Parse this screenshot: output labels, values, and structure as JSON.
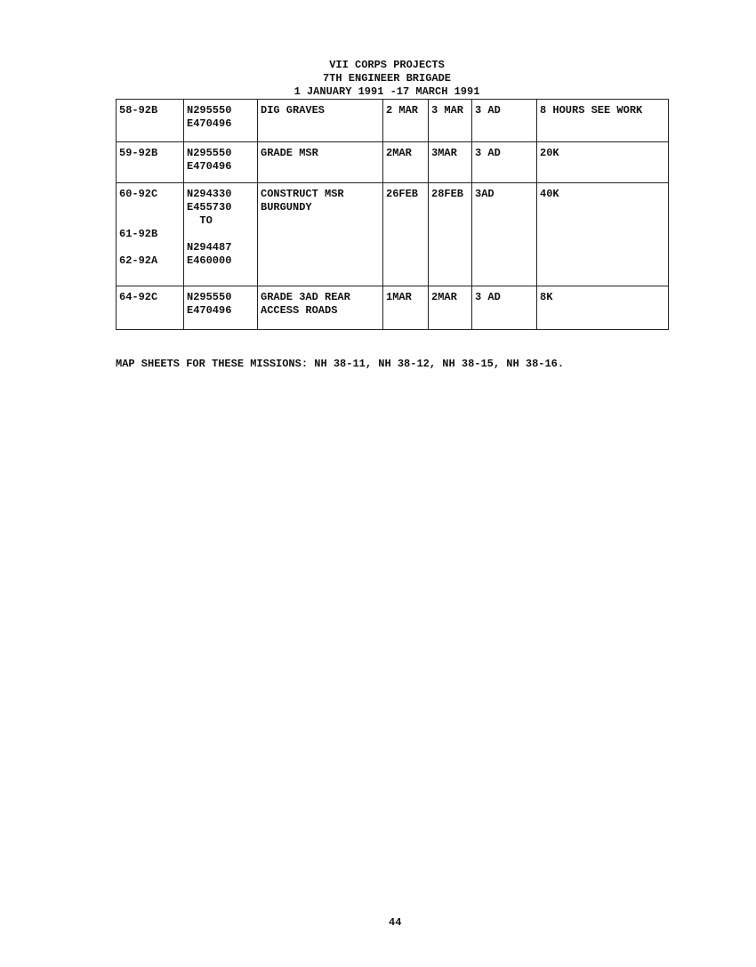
{
  "header": {
    "line1": "VII CORPS PROJECTS",
    "line2": "7TH ENGINEER BRIGADE",
    "line3": "1 JANUARY 1991 -17 MARCH 1991"
  },
  "rows": [
    {
      "project": "58-92B",
      "grid": "N295550\nE470496",
      "task": "DIG GRAVES",
      "start": "2 MAR",
      "end": "3 MAR",
      "unit": "3 AD",
      "notes": "8 HOURS SEE WORK"
    },
    {
      "project": "59-92B",
      "grid": "N295550\nE470496",
      "task": "GRADE MSR",
      "start": "2MAR",
      "end": "3MAR",
      "unit": "3 AD",
      "notes": "20K"
    },
    {
      "project": "60-92C\n\n\n61-92B\n\n62-92A",
      "grid": "N294330\nE455730\n  TO\n\nN294487\nE460000",
      "task": "CONSTRUCT MSR\nBURGUNDY",
      "start": "26FEB",
      "end": "28FEB",
      "unit": "3AD",
      "notes": "40K"
    },
    {
      "project": "64-92C",
      "grid": "N295550\nE470496",
      "task": "GRADE 3AD REAR\nACCESS ROADS",
      "start": "1MAR",
      "end": "2MAR",
      "unit": "3 AD",
      "notes": "8K"
    }
  ],
  "footer": "MAP SHEETS FOR THESE MISSIONS: NH 38-11, NH 38-12, NH 38-15, NH 38-16.",
  "page_number": "44"
}
